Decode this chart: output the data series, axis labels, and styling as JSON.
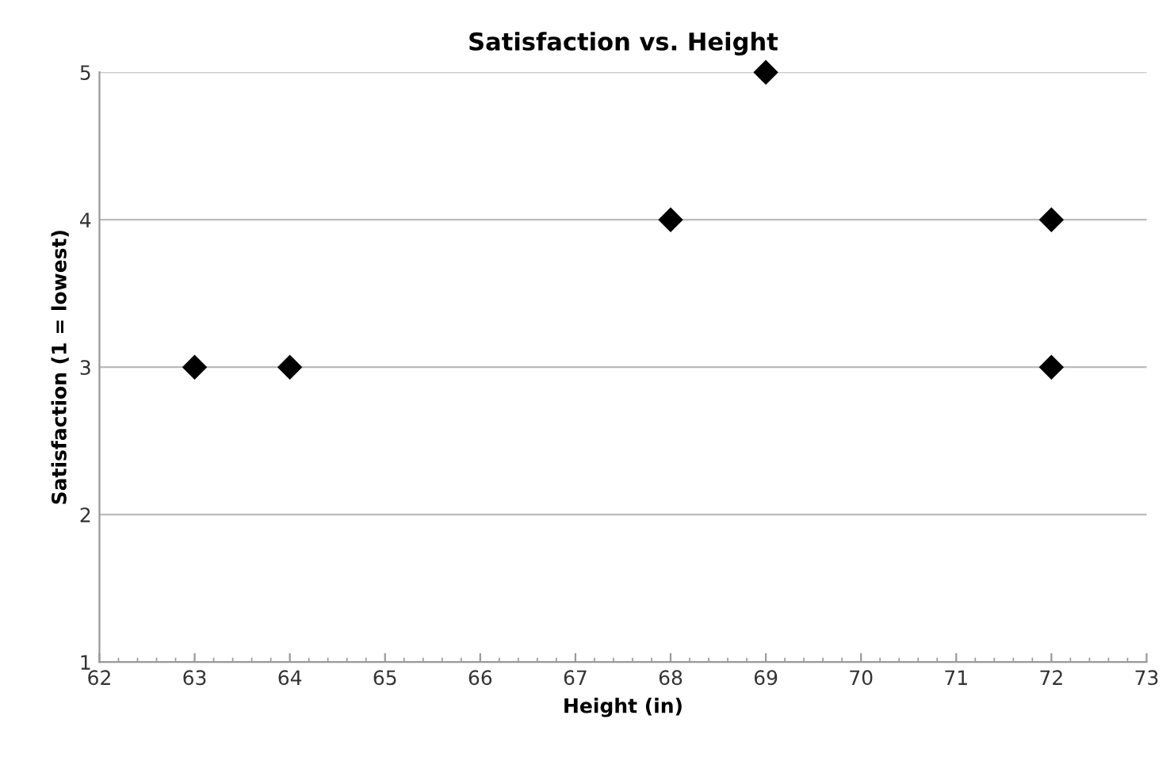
{
  "chart_data": {
    "type": "scatter",
    "title": "Satisfaction vs. Height",
    "xlabel": "Height (in)",
    "ylabel": "Satisfaction (1 = lowest)",
    "x": [
      63,
      64,
      68,
      69,
      72,
      72
    ],
    "series": [
      {
        "color": "#000000",
        "values": [
          3,
          3,
          4,
          5,
          4,
          3
        ]
      }
    ],
    "xlim": [
      62,
      73
    ],
    "xticks": [
      62,
      63,
      64,
      65,
      66,
      67,
      68,
      69,
      70,
      71,
      72,
      73
    ],
    "ylim": [
      1,
      5
    ],
    "yticks": [
      1,
      2,
      3,
      4,
      5
    ],
    "grid": "y",
    "marker": "diamond"
  }
}
